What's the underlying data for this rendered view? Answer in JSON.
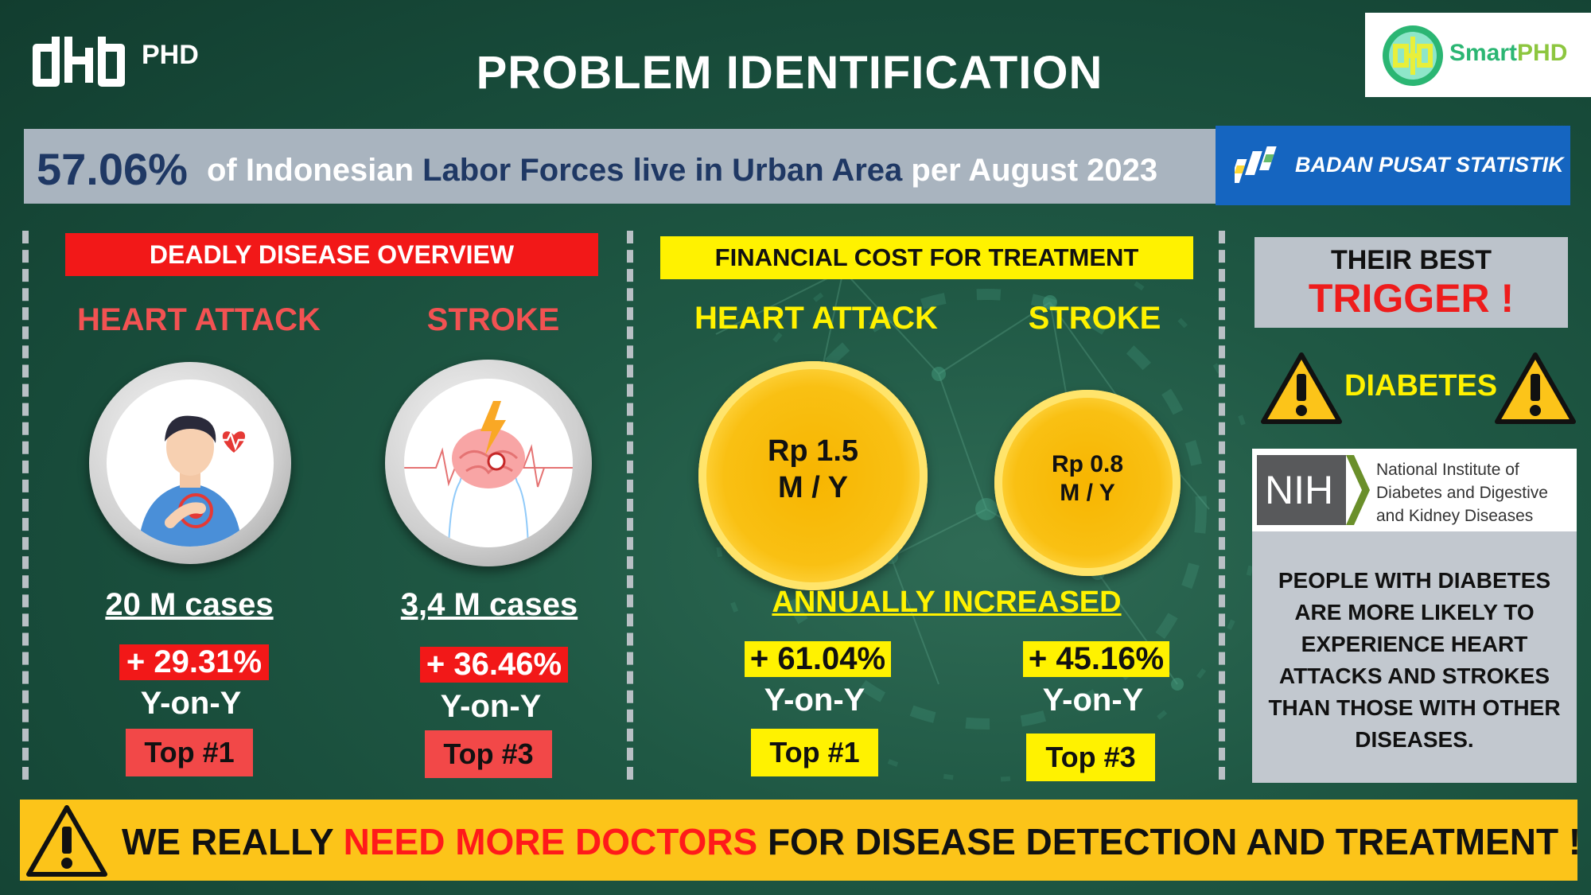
{
  "header": {
    "logo_text": "PHD",
    "title": "PROBLEM IDENTIFICATION",
    "partner_logo_text_part1": "Smart",
    "partner_logo_text_part2": "PHD"
  },
  "banner": {
    "stat": "57.06%",
    "text_1": "of Indonesian",
    "text_2": "Labor Forces live in Urban Area",
    "text_3": "per August 2023",
    "source_logo_text": "BADAN PUSAT STATISTIK"
  },
  "deadly": {
    "header": "DEADLY DISEASE OVERVIEW",
    "items": [
      {
        "name": "HEART ATTACK",
        "cases": "20 M cases",
        "change": "+ 29.31%",
        "period": "Y-on-Y",
        "rank": "Top #1",
        "icon": "heart-attack-person-icon"
      },
      {
        "name": "STROKE",
        "cases": "3,4 M cases",
        "change": "+ 36.46%",
        "period": "Y-on-Y",
        "rank": "Top #3",
        "icon": "stroke-brain-icon"
      }
    ]
  },
  "financial": {
    "header": "FINANCIAL COST FOR TREATMENT",
    "annual_label": "ANNUALLY INCREASED",
    "items": [
      {
        "name": "HEART ATTACK",
        "cost_line1": "Rp 1.5",
        "cost_line2": "M / Y",
        "change": "+ 61.04%",
        "period": "Y-on-Y",
        "rank": "Top #1"
      },
      {
        "name": "STROKE",
        "cost_line1": "Rp 0.8",
        "cost_line2": "M / Y",
        "change": "+ 45.16%",
        "period": "Y-on-Y",
        "rank": "Top #3"
      }
    ]
  },
  "trigger": {
    "line1": "THEIR BEST",
    "line2": "TRIGGER !",
    "disease": "DIABETES",
    "source_abbrev": "NIH",
    "source_line1": "National Institute of",
    "source_line2": "Diabetes and Digestive",
    "source_line3": "and Kidney Diseases",
    "statement": "PEOPLE WITH DIABETES ARE MORE LIKELY TO EXPERIENCE HEART ATTACKS AND STROKES THAN THOSE WITH OTHER DISEASES."
  },
  "footer": {
    "text_1": "WE REALLY",
    "text_highlight": "NEED MORE DOCTORS",
    "text_2": "FOR DISEASE DETECTION AND TREATMENT !"
  },
  "colors": {
    "background": "#1f5844",
    "red": "#f21818",
    "yellow": "#fff200",
    "footer": "#fcc419",
    "navy": "#1f3864"
  }
}
